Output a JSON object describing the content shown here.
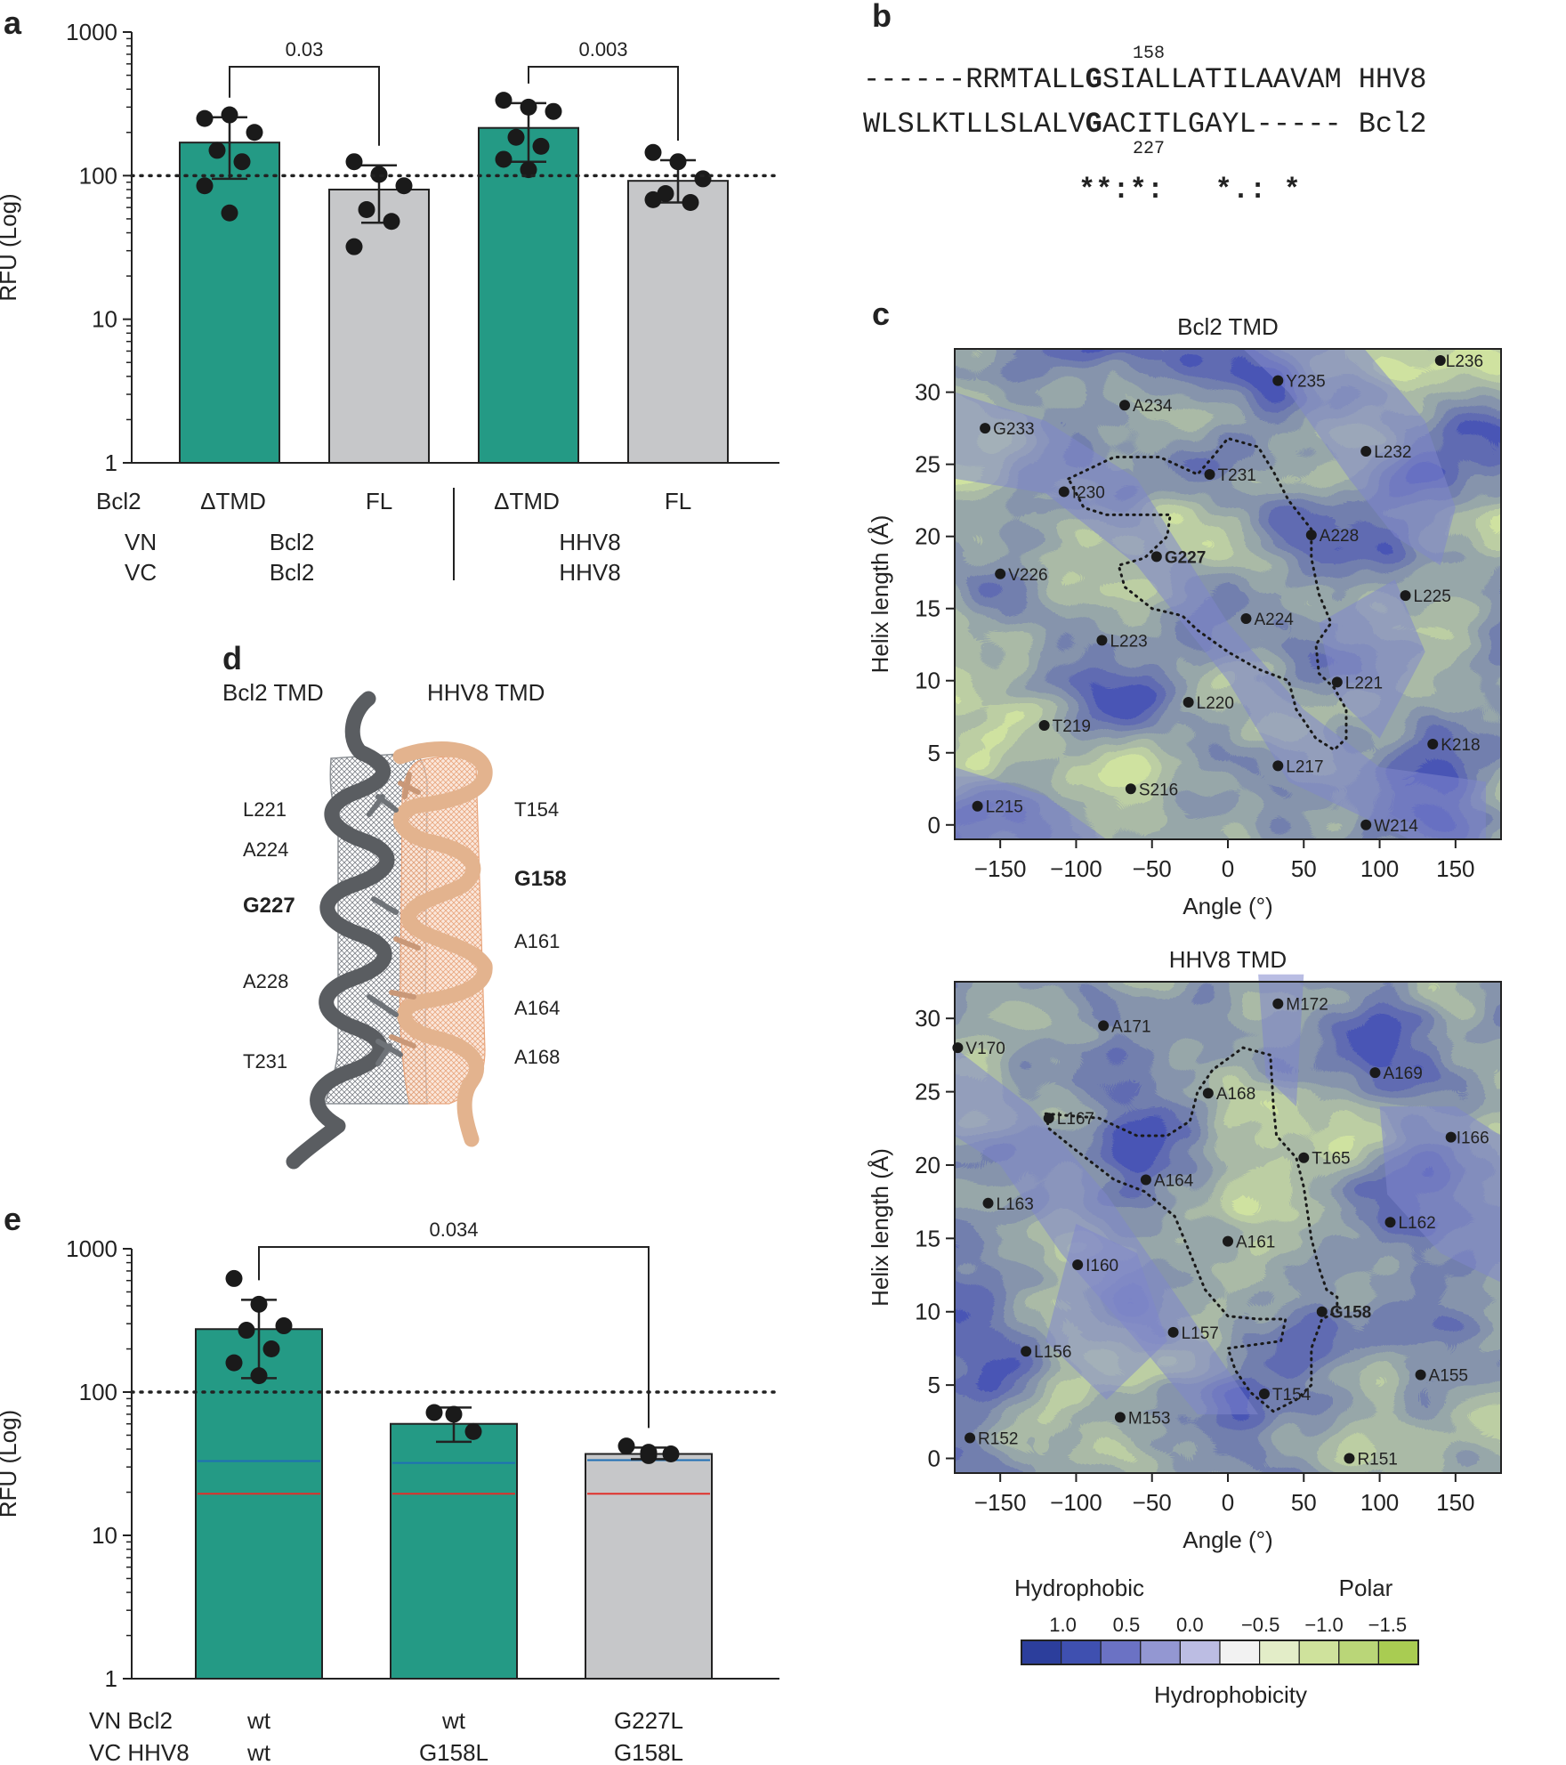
{
  "panel_letters": {
    "a": "a",
    "b": "b",
    "c": "c",
    "d": "d",
    "e": "e"
  },
  "colors": {
    "teal": "#249a85",
    "grey": "#c6c7c9",
    "blue_line": "#1f6fb5",
    "red_line": "#e0302a",
    "dark_helix": "#5a5d61",
    "peach_helix": "#e3b38e"
  },
  "chart_data": [
    {
      "id": "a",
      "type": "bar",
      "scale": "log",
      "ylabel": "RFU (Log)",
      "ylim": [
        1,
        1000
      ],
      "yticks": [
        "1",
        "10",
        "100",
        "1000"
      ],
      "yticks_values": [
        1,
        10,
        100,
        1000
      ],
      "reference_line": 100,
      "categories": [
        "ΔTMD",
        "FL",
        "ΔTMD",
        "FL"
      ],
      "row_labels": [
        "Bcl2",
        "VN",
        "VC"
      ],
      "group_labels": [
        {
          "vn": "Bcl2",
          "vc": "Bcl2"
        },
        {
          "vn": "HHV8",
          "vc": "HHV8"
        }
      ],
      "bars": [
        {
          "label": "ΔTMD",
          "value": 170,
          "err_low": 95,
          "err_high": 255,
          "color": "teal",
          "points": [
            250,
            265,
            200,
            150,
            125,
            85,
            55
          ]
        },
        {
          "label": "FL",
          "value": 80,
          "err_low": 47,
          "err_high": 118,
          "color": "grey",
          "points": [
            125,
            102,
            85,
            58,
            48,
            32
          ]
        },
        {
          "label": "ΔTMD",
          "value": 215,
          "err_low": 125,
          "err_high": 320,
          "color": "teal",
          "points": [
            335,
            300,
            280,
            185,
            160,
            130,
            110
          ]
        },
        {
          "label": "FL",
          "value": 92,
          "err_low": 65,
          "err_high": 128,
          "color": "grey",
          "points": [
            145,
            125,
            95,
            75,
            65,
            68
          ]
        }
      ],
      "significance": [
        {
          "from": 0,
          "to": 1,
          "label": "0.03"
        },
        {
          "from": 2,
          "to": 3,
          "label": "0.003"
        }
      ]
    },
    {
      "id": "c1",
      "type": "heatmap",
      "title": "Bcl2 TMD",
      "xlabel": "Angle (°)",
      "ylabel": "Helix length (Å)",
      "xlim": [
        -180,
        180
      ],
      "ylim": [
        -1,
        33
      ],
      "xticks": [
        -150,
        -100,
        -50,
        0,
        50,
        100,
        150
      ],
      "xtick_labels": [
        "−150",
        "−100",
        "−50",
        "0",
        "50",
        "100",
        "150"
      ],
      "yticks": [
        0,
        5,
        10,
        15,
        20,
        25,
        30
      ],
      "ytick_labels": [
        "0",
        "5",
        "10",
        "15",
        "20",
        "25",
        "30"
      ],
      "seed": 7,
      "residues": [
        {
          "name": "L236",
          "angle": 140,
          "length": 32.2
        },
        {
          "name": "Y235",
          "angle": 33,
          "length": 30.8
        },
        {
          "name": "A234",
          "angle": -68,
          "length": 29.1
        },
        {
          "name": "G233",
          "angle": -160,
          "length": 27.5
        },
        {
          "name": "L232",
          "angle": 91,
          "length": 25.9
        },
        {
          "name": "T231",
          "angle": -12,
          "length": 24.3
        },
        {
          "name": "I230",
          "angle": -108,
          "length": 23.1
        },
        {
          "name": "A228",
          "angle": 55,
          "length": 20.1
        },
        {
          "name": "G227",
          "angle": -47,
          "length": 18.6,
          "bold": true
        },
        {
          "name": "V226",
          "angle": -150,
          "length": 17.4
        },
        {
          "name": "L225",
          "angle": 117,
          "length": 15.9
        },
        {
          "name": "A224",
          "angle": 12,
          "length": 14.3
        },
        {
          "name": "L223",
          "angle": -83,
          "length": 12.8
        },
        {
          "name": "L221",
          "angle": 72,
          "length": 9.9
        },
        {
          "name": "L220",
          "angle": -26,
          "length": 8.5
        },
        {
          "name": "T219",
          "angle": -121,
          "length": 6.9
        },
        {
          "name": "K218",
          "angle": 135,
          "length": 5.6
        },
        {
          "name": "L217",
          "angle": 33,
          "length": 4.1
        },
        {
          "name": "S216",
          "angle": -64,
          "length": 2.5
        },
        {
          "name": "L215",
          "angle": -165,
          "length": 1.3
        },
        {
          "name": "W214",
          "angle": 91,
          "length": 0
        }
      ],
      "interface_outline": [
        [
          -105,
          24
        ],
        [
          -75,
          25.5
        ],
        [
          -45,
          25.5
        ],
        [
          -20,
          24.3
        ],
        [
          -10,
          25.5
        ],
        [
          0,
          26.8
        ],
        [
          20,
          26.2
        ],
        [
          30,
          24.5
        ],
        [
          40,
          22.5
        ],
        [
          55,
          20.5
        ],
        [
          55,
          18.5
        ],
        [
          60,
          16
        ],
        [
          68,
          14
        ],
        [
          58,
          12.5
        ],
        [
          60,
          10.5
        ],
        [
          70,
          9.5
        ],
        [
          78,
          8
        ],
        [
          78,
          6
        ],
        [
          70,
          5.2
        ],
        [
          58,
          6
        ],
        [
          45,
          8
        ],
        [
          40,
          10
        ],
        [
          20,
          10.8
        ],
        [
          0,
          12
        ],
        [
          -20,
          13.5
        ],
        [
          -30,
          14.5
        ],
        [
          -50,
          15
        ],
        [
          -68,
          16.5
        ],
        [
          -72,
          18
        ],
        [
          -55,
          18.5
        ],
        [
          -40,
          20
        ],
        [
          -38,
          21.5
        ],
        [
          -55,
          21.5
        ],
        [
          -80,
          21.5
        ],
        [
          -95,
          22
        ],
        [
          -105,
          24
        ]
      ]
    },
    {
      "id": "c2",
      "type": "heatmap",
      "title": "HHV8 TMD",
      "xlabel": "Angle (°)",
      "ylabel": "Helix length (Å)",
      "xlim": [
        -180,
        180
      ],
      "ylim": [
        -1,
        32.5
      ],
      "xticks": [
        -150,
        -100,
        -50,
        0,
        50,
        100,
        150
      ],
      "xtick_labels": [
        "−150",
        "−100",
        "−50",
        "0",
        "50",
        "100",
        "150"
      ],
      "yticks": [
        0,
        5,
        10,
        15,
        20,
        25,
        30
      ],
      "ytick_labels": [
        "0",
        "5",
        "10",
        "15",
        "20",
        "25",
        "30"
      ],
      "seed": 19,
      "residues": [
        {
          "name": "M172",
          "angle": 33,
          "length": 31.0
        },
        {
          "name": "A171",
          "angle": -82,
          "length": 29.5
        },
        {
          "name": "V170",
          "angle": -178,
          "length": 28.0
        },
        {
          "name": "A169",
          "angle": 97,
          "length": 26.3
        },
        {
          "name": "A168",
          "angle": -13,
          "length": 24.9
        },
        {
          "name": "L167",
          "angle": -118,
          "length": 23.2
        },
        {
          "name": "I166",
          "angle": 147,
          "length": 21.9
        },
        {
          "name": "T165",
          "angle": 50,
          "length": 20.5
        },
        {
          "name": "A164",
          "angle": -54,
          "length": 19.0
        },
        {
          "name": "L163",
          "angle": -158,
          "length": 17.4
        },
        {
          "name": "L162",
          "angle": 107,
          "length": 16.1
        },
        {
          "name": "A161",
          "angle": 0,
          "length": 14.8
        },
        {
          "name": "I160",
          "angle": -99,
          "length": 13.2
        },
        {
          "name": "G158",
          "angle": 62,
          "length": 10.0,
          "bold": true
        },
        {
          "name": "L157",
          "angle": -36,
          "length": 8.6
        },
        {
          "name": "L156",
          "angle": -133,
          "length": 7.3
        },
        {
          "name": "A155",
          "angle": 127,
          "length": 5.7
        },
        {
          "name": "T154",
          "angle": 24,
          "length": 4.4
        },
        {
          "name": "M153",
          "angle": -71,
          "length": 2.8
        },
        {
          "name": "R152",
          "angle": -170,
          "length": 1.4
        },
        {
          "name": "R151",
          "angle": 80,
          "length": 0
        }
      ],
      "interface_outline": [
        [
          -120,
          23.5
        ],
        [
          -85,
          23.2
        ],
        [
          -60,
          22
        ],
        [
          -40,
          22
        ],
        [
          -25,
          23
        ],
        [
          -20,
          25
        ],
        [
          -10,
          26.5
        ],
        [
          10,
          28
        ],
        [
          28,
          27.5
        ],
        [
          30,
          24
        ],
        [
          32,
          22
        ],
        [
          45,
          20.5
        ],
        [
          50,
          18.5
        ],
        [
          55,
          15
        ],
        [
          60,
          13
        ],
        [
          65,
          11.5
        ],
        [
          72,
          11
        ],
        [
          72,
          10
        ],
        [
          62,
          9.5
        ],
        [
          55,
          7.5
        ],
        [
          55,
          5
        ],
        [
          45,
          4
        ],
        [
          30,
          3.2
        ],
        [
          15,
          4.5
        ],
        [
          5,
          6
        ],
        [
          0,
          7.5
        ],
        [
          35,
          8
        ],
        [
          38,
          9.5
        ],
        [
          20,
          9.5
        ],
        [
          0,
          9.7
        ],
        [
          -15,
          11.5
        ],
        [
          -25,
          14
        ],
        [
          -35,
          16.5
        ],
        [
          -55,
          18.2
        ],
        [
          -75,
          19
        ],
        [
          -100,
          21
        ],
        [
          -118,
          22.5
        ],
        [
          -120,
          23.5
        ]
      ]
    },
    {
      "id": "e",
      "type": "bar",
      "scale": "log",
      "ylabel": "RFU (Log)",
      "ylim": [
        1,
        1000
      ],
      "yticks": [
        "1",
        "10",
        "100",
        "1000"
      ],
      "yticks_values": [
        1,
        10,
        100,
        1000
      ],
      "reference_line": 100,
      "row_labels": [
        "VN Bcl2",
        "VC HHV8"
      ],
      "bars": [
        {
          "vn": "wt",
          "vc": "wt",
          "value": 275,
          "err_low": 125,
          "err_high": 440,
          "color": "teal",
          "blue_line": 33,
          "red_line": 19.5,
          "points": [
            620,
            410,
            290,
            270,
            200,
            160,
            130
          ]
        },
        {
          "vn": "wt",
          "vc": "G158L",
          "value": 60,
          "err_low": 45,
          "err_high": 78,
          "color": "teal",
          "blue_line": 32,
          "red_line": 19.5,
          "points": [
            72,
            70,
            53
          ]
        },
        {
          "vn": "G227L",
          "vc": "G158L",
          "value": 37,
          "err_low": 34,
          "err_high": 41,
          "color": "grey",
          "blue_line": 33.5,
          "red_line": 19.5,
          "points": [
            42,
            38,
            37,
            36
          ]
        }
      ],
      "significance": [
        {
          "from": 0,
          "to": 2,
          "label": "0.034"
        }
      ]
    }
  ],
  "alignment": {
    "num_top": "158",
    "num_bottom": "227",
    "seq1_pre": "------RRMTALL",
    "seq1_g": "G",
    "seq1_post": "SIALLATILAAVAM",
    "seq1_name": "HHV8",
    "seq2_pre": "WLSLKTLLSLALV",
    "seq2_g": "G",
    "seq2_post": "ACITLGAYL-----",
    "seq2_name": "Bcl2",
    "conservation": "**:*:   *.: *"
  },
  "panel_d": {
    "label_left": "Bcl2 TMD",
    "label_right": "HHV8 TMD",
    "left_residues": [
      "L221",
      "A224",
      "G227",
      "A228",
      "T231"
    ],
    "left_bold": "G227",
    "right_residues": [
      "T154",
      "G158",
      "A161",
      "A164",
      "A168"
    ],
    "right_bold": "G158"
  },
  "legend": {
    "hydrophobic": "Hydrophobic",
    "polar": "Polar",
    "ticks": [
      "1.0",
      "0.5",
      "0.0",
      "−0.5",
      "−1.0",
      "−1.5"
    ],
    "colors": [
      "#2c3e9c",
      "#3f50b0",
      "#6b72c4",
      "#9397d2",
      "#bcbde3",
      "#f2f2f2",
      "#e3edc8",
      "#cfe29c",
      "#bad678",
      "#a9cc52"
    ],
    "title": "Hydrophobicity"
  }
}
